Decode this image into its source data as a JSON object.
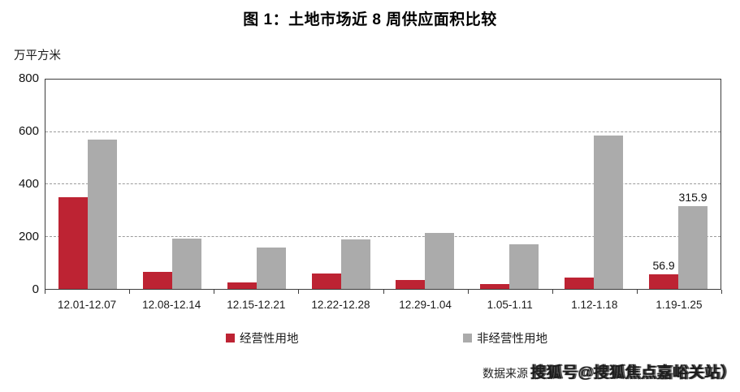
{
  "chart": {
    "title": "图 1：土地市场近 8 周供应面积比较",
    "unit_label": "万平方米"
  },
  "chart_data": {
    "type": "bar",
    "title": "图 1：土地市场近 8 周供应面积比较",
    "ylabel": "万平方米",
    "xlabel": "",
    "ylim": [
      0,
      800
    ],
    "yticks": [
      0,
      200,
      400,
      600,
      800
    ],
    "grid": "horizontal-dashed",
    "legend_position": "bottom",
    "categories": [
      "12.01-12.07",
      "12.08-12.14",
      "12.15-12.21",
      "12.22-12.28",
      "12.29-1.04",
      "1.05-1.11",
      "1.12-1.18",
      "1.19-1.25"
    ],
    "series": [
      {
        "name": "经营性用地",
        "color": "#BD2333",
        "values": [
          350,
          65,
          25,
          60,
          35,
          20,
          45,
          56.9
        ],
        "labels": [
          null,
          null,
          null,
          null,
          null,
          null,
          null,
          "56.9"
        ]
      },
      {
        "name": "非经营性用地",
        "color": "#ABABAB",
        "values": [
          570,
          193,
          157,
          190,
          214,
          170,
          585,
          315.9
        ],
        "labels": [
          null,
          null,
          null,
          null,
          null,
          null,
          null,
          "315.9"
        ]
      }
    ]
  },
  "footer": {
    "source_prefix": "数据来源",
    "watermark": "搜狐号@搜狐焦点嘉峪关站）"
  }
}
